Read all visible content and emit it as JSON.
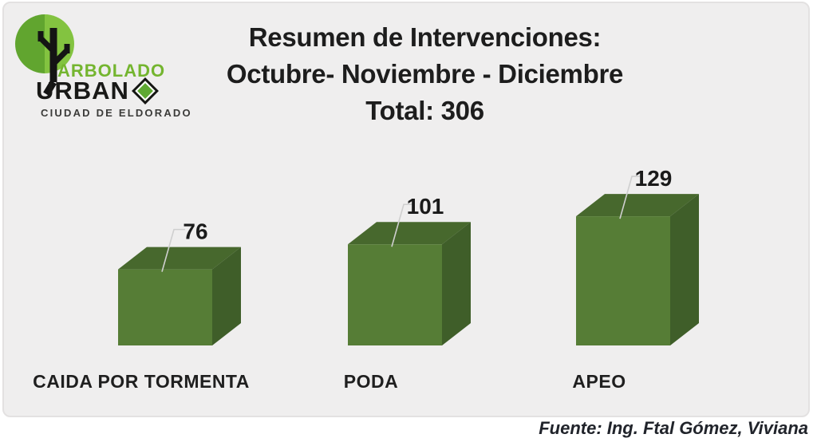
{
  "logo": {
    "line1": "ARBOLADO",
    "line2": "URBAN",
    "line3": "CIUDAD DE ELDORADO",
    "colors": {
      "circle_left_green": "#61a52f",
      "circle_right_green": "#83c340",
      "arbolado_green": "#74b52f",
      "urban_black": "#191917",
      "diamond_green": "#5ea832"
    }
  },
  "title": {
    "line1": "Resumen de Intervenciones:",
    "line2": "Octubre- Noviembre - Diciembre",
    "line3": "Total: 306"
  },
  "footer": {
    "source": "Fuente: Ing. Ftal Gómez, Viviana"
  },
  "chart_data": {
    "type": "bar",
    "style": "3d-cube-bars",
    "title": "Resumen de Intervenciones: Octubre- Noviembre - Diciembre",
    "total_label": "Total: 306",
    "total": 306,
    "categories": [
      "CAIDA POR TORMENTA",
      "PODA",
      "APEO"
    ],
    "values": [
      76,
      101,
      129
    ],
    "data_labels_shown": true,
    "axes_shown": false,
    "legend": "none",
    "plot_background": "#efeeee",
    "colors": {
      "front": "#567d36",
      "top": "#47682d",
      "side": "#3f5e29",
      "leader_line": "#cfcfcf"
    }
  }
}
